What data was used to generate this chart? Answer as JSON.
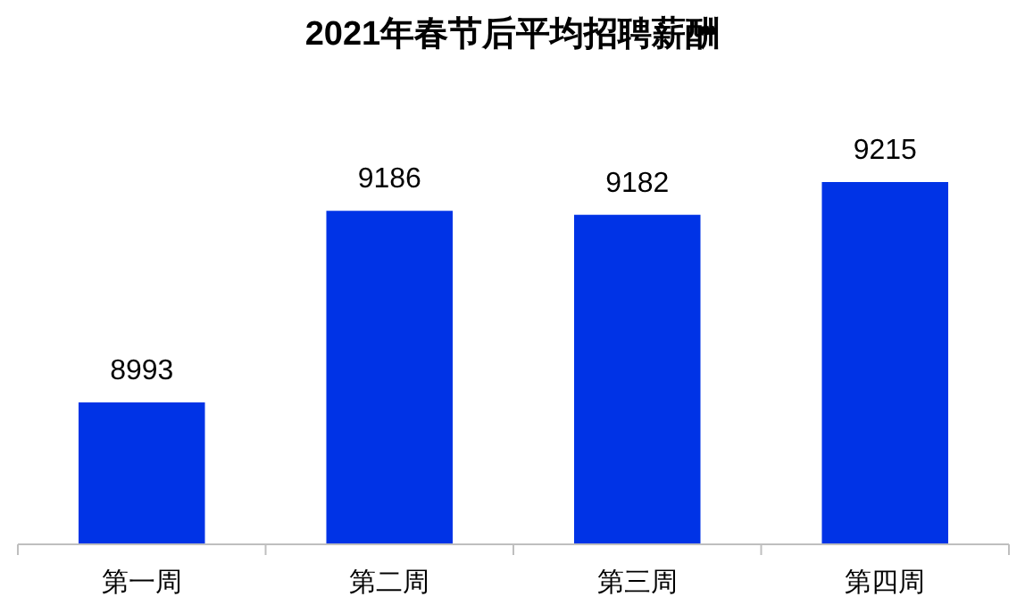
{
  "chart_data": {
    "type": "bar",
    "title": "2021年春节后平均招聘薪酬",
    "categories": [
      "第一周",
      "第二周",
      "第三周",
      "第四周"
    ],
    "values": [
      8993,
      9186,
      9182,
      9215
    ],
    "color": "#0033e6",
    "ylim": [
      8850,
      9215
    ],
    "tick_labels": "x",
    "data_labels": true
  }
}
